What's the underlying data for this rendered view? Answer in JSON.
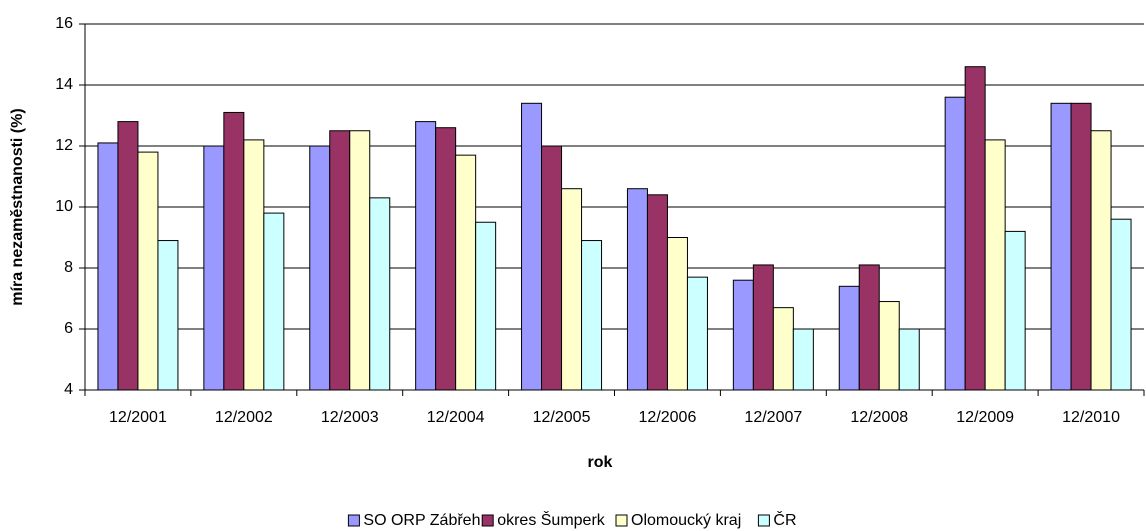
{
  "chart_data": {
    "type": "bar",
    "y_label": "míra nezaměstnanosti (%)",
    "x_label": "rok",
    "categories": [
      "12/2001",
      "12/2002",
      "12/2003",
      "12/2004",
      "12/2005",
      "12/2006",
      "12/2007",
      "12/2008",
      "12/2009",
      "12/2010"
    ],
    "series": [
      {
        "name": "SO ORP Zábřeh",
        "color": "#9999ff",
        "values": [
          12.1,
          12.0,
          12.0,
          12.8,
          13.4,
          10.6,
          7.6,
          7.4,
          13.6,
          13.4
        ]
      },
      {
        "name": "okres Šumperk",
        "color": "#993366",
        "values": [
          12.8,
          13.1,
          12.5,
          12.6,
          12.0,
          10.4,
          8.1,
          8.1,
          14.6,
          13.4
        ]
      },
      {
        "name": "Olomoucký kraj",
        "color": "#ffffcc",
        "values": [
          11.8,
          12.2,
          12.5,
          11.7,
          10.6,
          9.0,
          6.7,
          6.9,
          12.2,
          12.5
        ]
      },
      {
        "name": "ČR",
        "color": "#ccffff",
        "values": [
          8.9,
          9.8,
          10.3,
          9.5,
          8.9,
          7.7,
          6.0,
          6.0,
          9.2,
          9.6
        ]
      }
    ],
    "ylim": [
      4,
      16
    ],
    "yticks": [
      4,
      6,
      8,
      10,
      12,
      14,
      16
    ],
    "grid": true,
    "legend": "bottom"
  }
}
